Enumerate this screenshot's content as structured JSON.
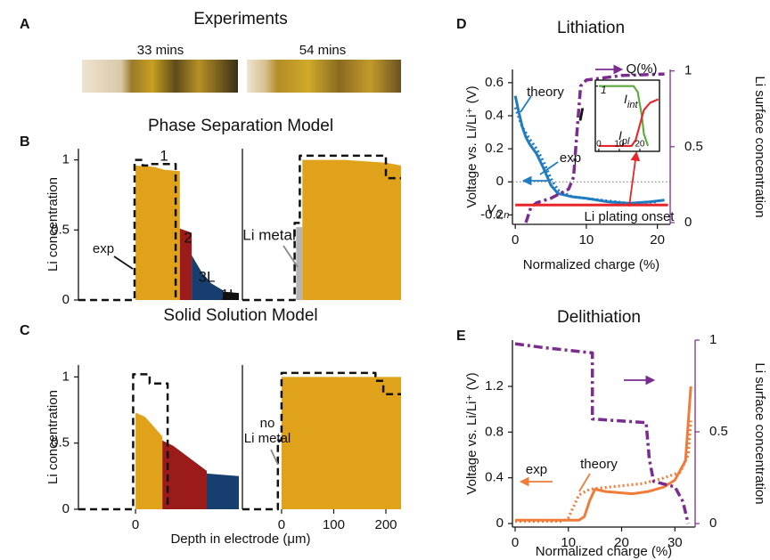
{
  "panel_labels": [
    "A",
    "B",
    "C",
    "D",
    "E"
  ],
  "experiments": {
    "title": "Experiments",
    "images": [
      "33 mins",
      "54 mins"
    ]
  },
  "chart_data": [
    {
      "type": "area",
      "title": "Phase Separation Model",
      "ylabel": "Li concentration",
      "xlim": [
        -121,
        219
      ],
      "ylim": [
        0,
        1.08
      ],
      "yticks": [
        0,
        0.5,
        1
      ],
      "series": [
        {
          "name": "1",
          "color": "#e0a21b",
          "kind": "area",
          "x": [
            0,
            0,
            40,
            60,
            94,
            94
          ],
          "values": [
            0,
            0.96,
            0.95,
            0.93,
            0.92,
            0
          ]
        },
        {
          "name": "2",
          "color": "#9b1a1a",
          "kind": "area",
          "x": [
            94,
            94,
            119,
            119
          ],
          "values": [
            0,
            0.51,
            0.48,
            0
          ]
        },
        {
          "name": "3L",
          "color": "#163e6e",
          "kind": "area",
          "x": [
            119,
            119,
            140,
            160,
            185,
            185
          ],
          "values": [
            0,
            0.32,
            0.2,
            0.12,
            0.07,
            0
          ]
        },
        {
          "name": "1L",
          "color": "#111111",
          "kind": "area",
          "x": [
            185,
            185,
            219,
            219
          ],
          "values": [
            0,
            0.06,
            0.05,
            0
          ]
        },
        {
          "name": "exp",
          "color": "#111111",
          "kind": "line",
          "style": "dashed",
          "x": [
            -121,
            -2,
            -2,
            15,
            15,
            30,
            30,
            85,
            85
          ],
          "values": [
            0,
            0,
            1.0,
            1.0,
            0.96,
            0.96,
            0.97,
            0.97,
            0
          ]
        }
      ]
    },
    {
      "type": "area",
      "xlim": [
        -75,
        229
      ],
      "ylim": [
        0,
        1.08
      ],
      "series": [
        {
          "name": "Li metal",
          "color": "#b5b5b5",
          "kind": "area",
          "x": [
            28,
            28,
            40,
            40
          ],
          "values": [
            0,
            0.52,
            0.52,
            0
          ]
        },
        {
          "color": "#e0a21b",
          "kind": "area",
          "x": [
            40,
            40,
            120,
            200,
            229,
            229
          ],
          "values": [
            0,
            1.0,
            1.0,
            0.98,
            0.96,
            0
          ]
        },
        {
          "color": "#111111",
          "kind": "line",
          "style": "dashed",
          "x": [
            -75,
            25,
            25,
            35,
            35,
            200,
            200,
            229
          ],
          "values": [
            0,
            0,
            0.55,
            0.55,
            1.03,
            1.03,
            0.87,
            0.87
          ]
        }
      ]
    },
    {
      "type": "area",
      "title": "Solid Solution Model",
      "ylabel": "Li concentration",
      "xlabel": "Depth in electrode (μm)",
      "xlim": [
        -121,
        219
      ],
      "ylim": [
        0,
        1.09
      ],
      "yticks": [
        0,
        0.5,
        1
      ],
      "xticks": [
        0
      ],
      "series": [
        {
          "color": "#e0a21b",
          "kind": "area",
          "x": [
            0,
            0,
            20,
            40,
            57,
            57
          ],
          "values": [
            0,
            0.73,
            0.7,
            0.62,
            0.55,
            0
          ]
        },
        {
          "color": "#9b1a1a",
          "kind": "area",
          "x": [
            57,
            57,
            80,
            110,
            151,
            151
          ],
          "values": [
            0,
            0.52,
            0.48,
            0.4,
            0.29,
            0
          ]
        },
        {
          "color": "#163e6e",
          "kind": "area",
          "x": [
            151,
            151,
            219,
            219
          ],
          "values": [
            0,
            0.27,
            0.25,
            0
          ]
        },
        {
          "color": "#111111",
          "kind": "line",
          "style": "dashed",
          "x": [
            -121,
            -5,
            -5,
            30,
            30,
            68,
            68
          ],
          "values": [
            0,
            0,
            1.02,
            1.02,
            0.95,
            0.95,
            0
          ]
        }
      ]
    },
    {
      "type": "area",
      "xlim": [
        -75,
        229
      ],
      "ylim": [
        0,
        1.09
      ],
      "xticks": [
        0,
        100,
        200
      ],
      "annotations": [
        [
          "no",
          "Li metal"
        ]
      ],
      "series": [
        {
          "color": "#e0a21b",
          "kind": "area",
          "x": [
            0,
            0,
            229,
            229
          ],
          "values": [
            0,
            1.0,
            1.0,
            0
          ]
        },
        {
          "color": "#111111",
          "kind": "line",
          "style": "dashed",
          "x": [
            -75,
            -7,
            -7,
            0,
            0,
            180,
            180,
            195,
            195,
            229
          ],
          "values": [
            0,
            0,
            0.52,
            0.52,
            1.03,
            1.03,
            0.97,
            0.97,
            0.87,
            0.87
          ]
        }
      ]
    },
    {
      "type": "line",
      "title": "Lithiation",
      "xlabel": "Normalized charge (%)",
      "ylabel": "Voltage vs. Li/Li⁺ (V)",
      "y2label": "Li surface concentration",
      "xlim": [
        -0.4,
        21.8
      ],
      "ylim": [
        -0.257,
        0.68
      ],
      "y2lim": [
        -0.012,
        1.01
      ],
      "xticks": [
        0,
        10,
        20
      ],
      "yticks": [
        0.6,
        0.4,
        0.2,
        0,
        -0.2
      ],
      "y2ticks": [
        0,
        0.5,
        1
      ],
      "zeroline": true,
      "annotations": [
        {
          "text": "V",
          "sub": "0,n"
        },
        "Li plating onset"
      ],
      "series": [
        {
          "name": "theory",
          "color": "#1f7cc1",
          "kind": "line",
          "style": "solid",
          "x": [
            0,
            0.5,
            1,
            1.5,
            2,
            3,
            4,
            5,
            6,
            8,
            10,
            13,
            16,
            19,
            21
          ],
          "values": [
            0.52,
            0.42,
            0.33,
            0.27,
            0.23,
            0.17,
            0.08,
            -0.02,
            -0.07,
            -0.09,
            -0.1,
            -0.12,
            -0.13,
            -0.12,
            -0.11
          ]
        },
        {
          "name": "exp",
          "color": "#1f7cc1",
          "kind": "line",
          "style": "dotted",
          "x": [
            0,
            1,
            2,
            3,
            4,
            5,
            6,
            8,
            12,
            16,
            20
          ],
          "values": [
            0.45,
            0.33,
            0.26,
            0.2,
            0.12,
            0.02,
            -0.05,
            -0.09,
            -0.11,
            -0.13,
            -0.12
          ]
        },
        {
          "color": "#7b2c8f",
          "kind": "line",
          "style": "dashdot",
          "axis": "y2",
          "x": [
            1.5,
            2.2,
            3,
            5,
            7.5,
            8.2,
            8.6,
            9.2,
            10,
            15,
            21
          ],
          "values": [
            0,
            0.1,
            0.13,
            0.16,
            0.22,
            0.3,
            0.55,
            0.9,
            0.94,
            0.97,
            0.98
          ]
        },
        {
          "color": "#e8262a",
          "kind": "line",
          "style": "solid",
          "x": [
            0,
            21.5
          ],
          "values": [
            -0.14,
            -0.14
          ]
        }
      ]
    },
    {
      "type": "line",
      "title": "Delithiation",
      "xlabel": "Normalized charge (%)",
      "ylabel": "Voltage vs. Li/Li⁺ (V)",
      "y2label": "Li surface concentration",
      "xlim": [
        -0.5,
        33.8
      ],
      "ylim": [
        -0.031,
        1.605
      ],
      "y2lim": [
        -0.019,
        1.0
      ],
      "xticks": [
        0,
        10,
        20,
        30
      ],
      "yticks": [
        0,
        0.4,
        0.8,
        1.2
      ],
      "y2ticks": [
        0,
        0.5,
        1
      ],
      "series": [
        {
          "name": "exp",
          "color": "#f07c3a",
          "kind": "line",
          "style": "dotted",
          "x": [
            0,
            9,
            10,
            11,
            12,
            14,
            18,
            24,
            28,
            31,
            32.5,
            33
          ],
          "values": [
            0.02,
            0.02,
            0.05,
            0.15,
            0.25,
            0.3,
            0.32,
            0.35,
            0.4,
            0.45,
            0.6,
            0.9
          ]
        },
        {
          "name": "theory",
          "color": "#f07c3a",
          "kind": "line",
          "style": "solid",
          "x": [
            0,
            12,
            13,
            14,
            15,
            17,
            22,
            25,
            28,
            30,
            32,
            33
          ],
          "values": [
            0.03,
            0.03,
            0.06,
            0.2,
            0.3,
            0.28,
            0.26,
            0.28,
            0.32,
            0.38,
            0.55,
            1.2
          ]
        },
        {
          "color": "#7b2c8f",
          "kind": "line",
          "style": "dashdot",
          "axis": "y2",
          "x": [
            0,
            5,
            14.5,
            14.5,
            24.6,
            25.2,
            26,
            30,
            31.5,
            32.5
          ],
          "values": [
            0.98,
            0.96,
            0.93,
            0.57,
            0.55,
            0.35,
            0.23,
            0.2,
            0.12,
            0
          ]
        }
      ]
    },
    {
      "type": "line",
      "title": "Q(%)",
      "ylabel": "I",
      "xlim": [
        -1.7,
        29.6
      ],
      "ylim": [
        -0.09,
        1.1
      ],
      "xticks": [
        0,
        10,
        20
      ],
      "yticks": [
        1
      ],
      "series": [
        {
          "label": {
            "text": "I",
            "sub": "int"
          },
          "color": "#5aab3a",
          "kind": "line",
          "style": "solid",
          "x": [
            0,
            17,
            19,
            21,
            22,
            24
          ],
          "values": [
            1,
            1,
            0.9,
            0.5,
            0.2,
            0
          ]
        },
        {
          "label": {
            "text": "I",
            "sub": "pl"
          },
          "color": "#e8262a",
          "kind": "line",
          "style": "solid",
          "x": [
            0,
            16,
            18,
            20,
            22,
            25,
            29
          ],
          "values": [
            0,
            0,
            0.1,
            0.35,
            0.6,
            0.72,
            0.78
          ]
        }
      ]
    }
  ]
}
